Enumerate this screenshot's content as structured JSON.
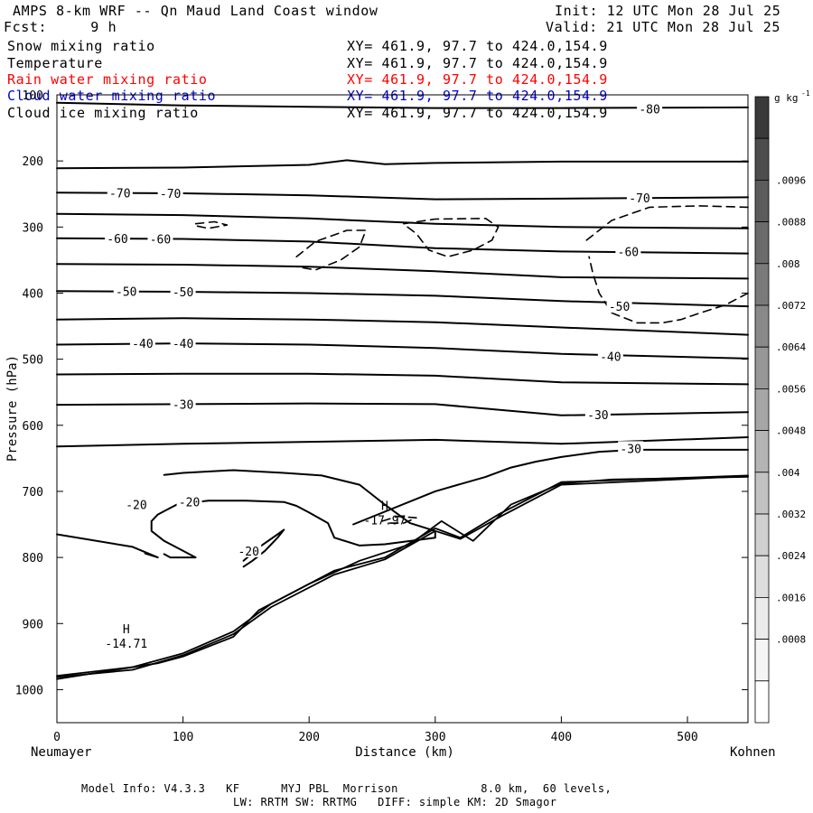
{
  "header": {
    "title": "AMPS 8-km WRF -- Qn Maud Land Coast window",
    "init": "Init: 12 UTC Mon 28 Jul 25",
    "forecast": "Fcst:     9 h",
    "valid": "Valid: 21 UTC Mon 28 Jul 25"
  },
  "fields": [
    {
      "name": "Snow mixing ratio",
      "xy": "XY= 461.9, 97.7 to 424.0,154.9",
      "color": "#000000"
    },
    {
      "name": "Temperature",
      "xy": "XY= 461.9, 97.7 to 424.0,154.9",
      "color": "#000000"
    },
    {
      "name": "Rain water mixing ratio",
      "xy": "XY= 461.9, 97.7 to 424.0,154.9",
      "color": "#ff0000"
    },
    {
      "name": "Cloud water mixing ratio",
      "xy": "XY= 461.9, 97.7 to 424.0,154.9",
      "color": "#0000cc"
    },
    {
      "name": "Cloud ice mixing ratio",
      "xy": "XY= 461.9, 97.7 to 424.0,154.9",
      "color": "#000000"
    }
  ],
  "chart_data": {
    "type": "line",
    "xlabel": "Distance (km)",
    "ylabel": "Pressure (hPa)",
    "xlim": [
      0,
      548
    ],
    "ylim": [
      1050,
      100
    ],
    "y_scale": "linear (pressure decreasing upward)",
    "x_ticks": [
      "0",
      "100",
      "200",
      "300",
      "400",
      "500"
    ],
    "y_ticks": [
      "100",
      "200",
      "300",
      "400",
      "500",
      "600",
      "700",
      "800",
      "900",
      "1000"
    ],
    "x_endpoints": {
      "left": "Neumayer",
      "right": "Kohnen"
    },
    "colorbar": {
      "unit": "g kg",
      "unit_exponent": "-1",
      "labels": [
        ".0096",
        ".0088",
        ".008",
        ".0072",
        ".0064",
        ".0056",
        ".0048",
        ".004",
        ".0032",
        ".0024",
        ".0016",
        ".0008"
      ],
      "shade_colors": [
        "#3a3a3a",
        "#4d4d4d",
        "#5c5c5c",
        "#6b6b6b",
        "#7a7a7a",
        "#898989",
        "#979797",
        "#a6a6a6",
        "#b4b4b4",
        "#c2c2c2",
        "#d0d0d0",
        "#dedede",
        "#ebebeb",
        "#f5f5f5",
        "#ffffff"
      ]
    },
    "temperature_contours": [
      {
        "value": -80,
        "points": [
          [
            0,
            112
          ],
          [
            100,
            116
          ],
          [
            200,
            118
          ],
          [
            300,
            120
          ],
          [
            400,
            120
          ],
          [
            548,
            119
          ]
        ]
      },
      {
        "value": null,
        "points": [
          [
            0,
            211
          ],
          [
            100,
            210
          ],
          [
            200,
            206
          ],
          [
            230,
            199
          ],
          [
            260,
            205
          ],
          [
            300,
            203
          ],
          [
            400,
            201
          ],
          [
            548,
            201
          ]
        ]
      },
      {
        "value": -70,
        "points": [
          [
            0,
            248
          ],
          [
            100,
            249
          ],
          [
            200,
            252
          ],
          [
            300,
            258
          ],
          [
            400,
            257
          ],
          [
            548,
            255
          ]
        ]
      },
      {
        "value": null,
        "points": [
          [
            0,
            280
          ],
          [
            100,
            282
          ],
          [
            200,
            287
          ],
          [
            300,
            295
          ],
          [
            400,
            300
          ],
          [
            548,
            302
          ]
        ]
      },
      {
        "value": -60,
        "points": [
          [
            0,
            317
          ],
          [
            100,
            318
          ],
          [
            200,
            322
          ],
          [
            300,
            332
          ],
          [
            400,
            337
          ],
          [
            548,
            340
          ]
        ]
      },
      {
        "value": null,
        "points": [
          [
            0,
            356
          ],
          [
            100,
            357
          ],
          [
            200,
            360
          ],
          [
            300,
            367
          ],
          [
            400,
            376
          ],
          [
            548,
            378
          ]
        ]
      },
      {
        "value": -50,
        "points": [
          [
            0,
            397
          ],
          [
            100,
            398
          ],
          [
            200,
            400
          ],
          [
            300,
            404
          ],
          [
            400,
            412
          ],
          [
            548,
            420
          ]
        ]
      },
      {
        "value": null,
        "points": [
          [
            0,
            440
          ],
          [
            100,
            438
          ],
          [
            200,
            440
          ],
          [
            300,
            444
          ],
          [
            400,
            452
          ],
          [
            548,
            463
          ]
        ]
      },
      {
        "value": -40,
        "points": [
          [
            0,
            478
          ],
          [
            100,
            476
          ],
          [
            200,
            478
          ],
          [
            300,
            483
          ],
          [
            400,
            492
          ],
          [
            548,
            499
          ]
        ]
      },
      {
        "value": null,
        "points": [
          [
            0,
            523
          ],
          [
            100,
            522
          ],
          [
            200,
            522
          ],
          [
            300,
            525
          ],
          [
            400,
            535
          ],
          [
            548,
            538
          ]
        ]
      },
      {
        "value": -30,
        "points": [
          [
            0,
            569
          ],
          [
            100,
            568
          ],
          [
            200,
            567
          ],
          [
            300,
            568
          ],
          [
            400,
            585
          ],
          [
            548,
            580
          ]
        ]
      },
      {
        "value": null,
        "points": [
          [
            0,
            632
          ],
          [
            100,
            628
          ],
          [
            200,
            625
          ],
          [
            300,
            622
          ],
          [
            400,
            628
          ],
          [
            548,
            618
          ]
        ]
      },
      {
        "value": -30,
        "points": [
          [
            235,
            750
          ],
          [
            300,
            700
          ],
          [
            340,
            678
          ],
          [
            360,
            664
          ],
          [
            380,
            655
          ],
          [
            400,
            648
          ],
          [
            430,
            640
          ],
          [
            460,
            637
          ],
          [
            548,
            637
          ]
        ]
      },
      {
        "value": -20,
        "points": [
          [
            0,
            765
          ],
          [
            60,
            784
          ],
          [
            80,
            800
          ],
          [
            70,
            794
          ]
        ]
      }
    ],
    "minus20_loops": [
      {
        "value": -20,
        "points": [
          [
            85,
            675
          ],
          [
            100,
            672
          ],
          [
            140,
            668
          ],
          [
            180,
            672
          ],
          [
            210,
            676
          ],
          [
            240,
            690
          ],
          [
            260,
            720
          ],
          [
            280,
            748
          ],
          [
            300,
            760
          ],
          [
            300,
            770
          ],
          [
            260,
            780
          ],
          [
            240,
            782
          ],
          [
            220,
            770
          ],
          [
            215,
            748
          ],
          [
            200,
            732
          ],
          [
            190,
            722
          ],
          [
            180,
            716
          ],
          [
            150,
            714
          ],
          [
            120,
            714
          ],
          [
            95,
            720
          ],
          [
            85,
            730
          ],
          [
            80,
            735
          ],
          [
            75,
            745
          ],
          [
            75,
            760
          ],
          [
            85,
            775
          ],
          [
            100,
            790
          ],
          [
            110,
            800
          ],
          [
            90,
            800
          ],
          [
            85,
            795
          ]
        ]
      },
      {
        "value": -20,
        "points": [
          [
            148,
            805
          ],
          [
            160,
            785
          ],
          [
            175,
            765
          ],
          [
            180,
            758
          ],
          [
            175,
            770
          ],
          [
            165,
            790
          ],
          [
            155,
            805
          ],
          [
            148,
            814
          ]
        ]
      }
    ],
    "terrain_lines": [
      {
        "points": [
          [
            0,
            984
          ],
          [
            80,
            960
          ],
          [
            100,
            950
          ],
          [
            140,
            920
          ],
          [
            160,
            880
          ],
          [
            200,
            840
          ],
          [
            240,
            805
          ],
          [
            280,
            780
          ],
          [
            305,
            745
          ],
          [
            330,
            775
          ],
          [
            360,
            720
          ],
          [
            400,
            688
          ],
          [
            440,
            682
          ],
          [
            548,
            678
          ]
        ]
      },
      {
        "points": [
          [
            0,
            979
          ],
          [
            60,
            966
          ],
          [
            100,
            945
          ],
          [
            140,
            912
          ],
          [
            170,
            870
          ],
          [
            220,
            820
          ],
          [
            260,
            800
          ],
          [
            300,
            756
          ],
          [
            320,
            770
          ],
          [
            350,
            735
          ],
          [
            400,
            686
          ],
          [
            548,
            676
          ]
        ]
      },
      {
        "points": [
          [
            0,
            981
          ],
          [
            60,
            970
          ],
          [
            100,
            948
          ],
          [
            140,
            916
          ],
          [
            170,
            875
          ],
          [
            220,
            826
          ],
          [
            260,
            803
          ],
          [
            300,
            760
          ],
          [
            320,
            772
          ],
          [
            352,
            738
          ],
          [
            400,
            690
          ],
          [
            548,
            677
          ]
        ]
      }
    ],
    "snow_dashed_contours": [
      {
        "points": [
          [
            190,
            345
          ],
          [
            205,
            322
          ],
          [
            230,
            305
          ],
          [
            245,
            305
          ],
          [
            240,
            330
          ],
          [
            225,
            350
          ],
          [
            205,
            365
          ],
          [
            190,
            360
          ]
        ]
      },
      {
        "points": [
          [
            275,
            295
          ],
          [
            300,
            288
          ],
          [
            340,
            287
          ],
          [
            350,
            300
          ],
          [
            345,
            320
          ],
          [
            330,
            335
          ],
          [
            310,
            345
          ],
          [
            295,
            335
          ],
          [
            285,
            310
          ],
          [
            278,
            300
          ]
        ]
      },
      {
        "points": [
          [
            420,
            320
          ],
          [
            440,
            290
          ],
          [
            470,
            270
          ],
          [
            510,
            268
          ],
          [
            548,
            270
          ]
        ]
      },
      {
        "points": [
          [
            548,
            400
          ],
          [
            530,
            418
          ],
          [
            510,
            430
          ],
          [
            495,
            440
          ],
          [
            480,
            445
          ],
          [
            460,
            445
          ],
          [
            440,
            430
          ],
          [
            430,
            400
          ],
          [
            425,
            370
          ],
          [
            422,
            345
          ]
        ]
      },
      {
        "points": [
          [
            110,
            295
          ],
          [
            125,
            292
          ],
          [
            135,
            297
          ],
          [
            120,
            302
          ],
          [
            110,
            298
          ]
        ]
      },
      {
        "points": [
          [
            258,
            745
          ],
          [
            270,
            738
          ],
          [
            285,
            740
          ],
          [
            275,
            748
          ],
          [
            262,
            748
          ]
        ]
      }
    ],
    "annotations": [
      {
        "label": "H",
        "value": "-14.71",
        "x": 55,
        "p": 915
      },
      {
        "label": "H",
        "value": "-17.97",
        "x": 260,
        "p": 728
      }
    ],
    "contour_labels": [
      {
        "text": "-80",
        "x": 470,
        "p": 121
      },
      {
        "text": "-70",
        "x": 50,
        "p": 248
      },
      {
        "text": "-70",
        "x": 90,
        "p": 249
      },
      {
        "text": "-70",
        "x": 462,
        "p": 256
      },
      {
        "text": "-60",
        "x": 48,
        "p": 317
      },
      {
        "text": "-60",
        "x": 82,
        "p": 318
      },
      {
        "text": "-60",
        "x": 453,
        "p": 337
      },
      {
        "text": "-50",
        "x": 55,
        "p": 397
      },
      {
        "text": "-50",
        "x": 100,
        "p": 398
      },
      {
        "text": "-50",
        "x": 446,
        "p": 420
      },
      {
        "text": "-40",
        "x": 68,
        "p": 476
      },
      {
        "text": "-40",
        "x": 100,
        "p": 476
      },
      {
        "text": "-40",
        "x": 439,
        "p": 496
      },
      {
        "text": "-30",
        "x": 100,
        "p": 568
      },
      {
        "text": "-30",
        "x": 429,
        "p": 584
      },
      {
        "text": "-30",
        "x": 455,
        "p": 635
      },
      {
        "text": "-20",
        "x": 63,
        "p": 720
      },
      {
        "text": "-20",
        "x": 105,
        "p": 716
      },
      {
        "text": "-20",
        "x": 152,
        "p": 790
      }
    ]
  },
  "footer": {
    "model_info": "Model Info: V4.3.3   KF      MYJ PBL  Morrison            8.0 km,  60 levels,",
    "model_info_2": "LW: RRTM SW: RRTMG   DIFF: simple KM: 2D Smagor"
  }
}
